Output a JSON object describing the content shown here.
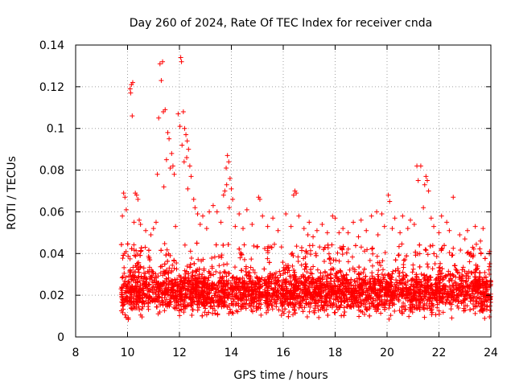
{
  "chart_data": {
    "type": "scatter",
    "title": "Day 260 of 2024, Rate Of TEC Index for receiver cnda",
    "xlabel": "GPS time / hours",
    "ylabel": "ROTI / TECUs",
    "xlim": [
      8,
      24
    ],
    "ylim": [
      0,
      0.14
    ],
    "x_ticks": [
      "8",
      "10",
      "12",
      "14",
      "16",
      "18",
      "20",
      "22",
      "24"
    ],
    "y_ticks": [
      "0",
      "0.02",
      "0.04",
      "0.06",
      "0.08",
      "0.1",
      "0.12",
      "0.14"
    ],
    "grid": true,
    "marker": "+",
    "marker_color": "#ff0000",
    "series": [
      {
        "name": "ROTI",
        "points": [
          [
            10.1,
            0.119
          ],
          [
            10.15,
            0.121
          ],
          [
            10.2,
            0.122
          ],
          [
            10.12,
            0.117
          ],
          [
            10.18,
            0.106
          ],
          [
            11.25,
            0.131
          ],
          [
            11.35,
            0.132
          ],
          [
            11.3,
            0.123
          ],
          [
            11.45,
            0.109
          ],
          [
            11.38,
            0.108
          ],
          [
            11.95,
            0.107
          ],
          [
            12.05,
            0.134
          ],
          [
            12.08,
            0.132
          ],
          [
            12.15,
            0.108
          ],
          [
            12.02,
            0.101
          ],
          [
            11.2,
            0.105
          ],
          [
            11.55,
            0.098
          ],
          [
            11.6,
            0.095
          ],
          [
            11.7,
            0.088
          ],
          [
            11.75,
            0.082
          ],
          [
            11.8,
            0.078
          ],
          [
            11.5,
            0.085
          ],
          [
            11.65,
            0.081
          ],
          [
            11.15,
            0.078
          ],
          [
            11.4,
            0.072
          ],
          [
            12.2,
            0.1
          ],
          [
            12.25,
            0.097
          ],
          [
            12.3,
            0.094
          ],
          [
            12.35,
            0.09
          ],
          [
            12.28,
            0.086
          ],
          [
            12.4,
            0.082
          ],
          [
            12.45,
            0.077
          ],
          [
            12.1,
            0.092
          ],
          [
            12.18,
            0.084
          ],
          [
            12.32,
            0.071
          ],
          [
            13.85,
            0.087
          ],
          [
            13.9,
            0.084
          ],
          [
            13.8,
            0.081
          ],
          [
            13.95,
            0.076
          ],
          [
            13.75,
            0.07
          ],
          [
            13.7,
            0.068
          ],
          [
            14.0,
            0.071
          ],
          [
            14.05,
            0.066
          ],
          [
            13.82,
            0.073
          ],
          [
            13.92,
            0.062
          ],
          [
            9.85,
            0.069
          ],
          [
            9.9,
            0.067
          ],
          [
            10.3,
            0.069
          ],
          [
            10.35,
            0.068
          ],
          [
            10.4,
            0.066
          ],
          [
            10.45,
            0.056
          ],
          [
            10.5,
            0.054
          ],
          [
            10.25,
            0.055
          ],
          [
            9.8,
            0.058
          ],
          [
            9.95,
            0.061
          ],
          [
            15.05,
            0.067
          ],
          [
            15.1,
            0.066
          ],
          [
            16.45,
            0.07
          ],
          [
            16.5,
            0.069
          ],
          [
            16.4,
            0.068
          ],
          [
            21.15,
            0.082
          ],
          [
            21.3,
            0.082
          ],
          [
            21.5,
            0.077
          ],
          [
            21.55,
            0.075
          ],
          [
            21.6,
            0.07
          ],
          [
            21.2,
            0.075
          ],
          [
            21.45,
            0.073
          ],
          [
            22.55,
            0.067
          ],
          [
            20.05,
            0.068
          ],
          [
            20.1,
            0.065
          ],
          [
            12.55,
            0.066
          ],
          [
            12.6,
            0.062
          ],
          [
            12.7,
            0.059
          ],
          [
            12.9,
            0.058
          ],
          [
            13.15,
            0.06
          ],
          [
            13.3,
            0.063
          ],
          [
            13.45,
            0.06
          ],
          [
            14.3,
            0.059
          ],
          [
            14.6,
            0.061
          ],
          [
            15.2,
            0.058
          ],
          [
            15.6,
            0.057
          ],
          [
            16.1,
            0.059
          ],
          [
            16.6,
            0.058
          ],
          [
            17.0,
            0.055
          ],
          [
            17.5,
            0.054
          ],
          [
            17.9,
            0.058
          ],
          [
            18.0,
            0.057
          ],
          [
            18.7,
            0.055
          ],
          [
            19.0,
            0.056
          ],
          [
            19.4,
            0.058
          ],
          [
            19.6,
            0.06
          ],
          [
            19.8,
            0.059
          ],
          [
            20.3,
            0.057
          ],
          [
            20.6,
            0.058
          ],
          [
            20.9,
            0.056
          ],
          [
            21.4,
            0.062
          ],
          [
            21.7,
            0.057
          ],
          [
            22.1,
            0.058
          ],
          [
            22.3,
            0.055
          ],
          [
            23.1,
            0.051
          ],
          [
            23.4,
            0.053
          ],
          [
            23.7,
            0.052
          ],
          [
            23.95,
            0.041
          ],
          [
            23.6,
            0.046
          ],
          [
            23.3,
            0.043
          ],
          [
            11.0,
            0.052
          ],
          [
            11.1,
            0.055
          ],
          [
            10.7,
            0.051
          ],
          [
            10.9,
            0.049
          ],
          [
            11.85,
            0.053
          ],
          [
            12.8,
            0.054
          ],
          [
            13.05,
            0.052
          ],
          [
            13.6,
            0.055
          ],
          [
            14.15,
            0.053
          ],
          [
            14.45,
            0.052
          ],
          [
            14.8,
            0.054
          ],
          [
            15.4,
            0.053
          ],
          [
            15.8,
            0.051
          ],
          [
            16.3,
            0.053
          ],
          [
            16.8,
            0.052
          ],
          [
            17.3,
            0.051
          ],
          [
            17.7,
            0.05
          ],
          [
            18.3,
            0.052
          ],
          [
            18.5,
            0.05
          ],
          [
            19.2,
            0.051
          ],
          [
            19.9,
            0.053
          ],
          [
            20.2,
            0.052
          ],
          [
            20.5,
            0.05
          ],
          [
            20.8,
            0.052
          ],
          [
            21.05,
            0.054
          ],
          [
            21.8,
            0.053
          ],
          [
            22.0,
            0.05
          ],
          [
            22.4,
            0.051
          ],
          [
            22.8,
            0.049
          ],
          [
            23.0,
            0.047
          ],
          [
            18.15,
            0.05
          ],
          [
            18.9,
            0.048
          ],
          [
            19.65,
            0.049
          ],
          [
            17.15,
            0.048
          ],
          [
            16.95,
            0.049
          ]
        ]
      }
    ],
    "dense_band": {
      "x_start": 9.75,
      "x_end": 24.0,
      "typical_min": 0.005,
      "typical_max": 0.045,
      "central": 0.018
    }
  }
}
